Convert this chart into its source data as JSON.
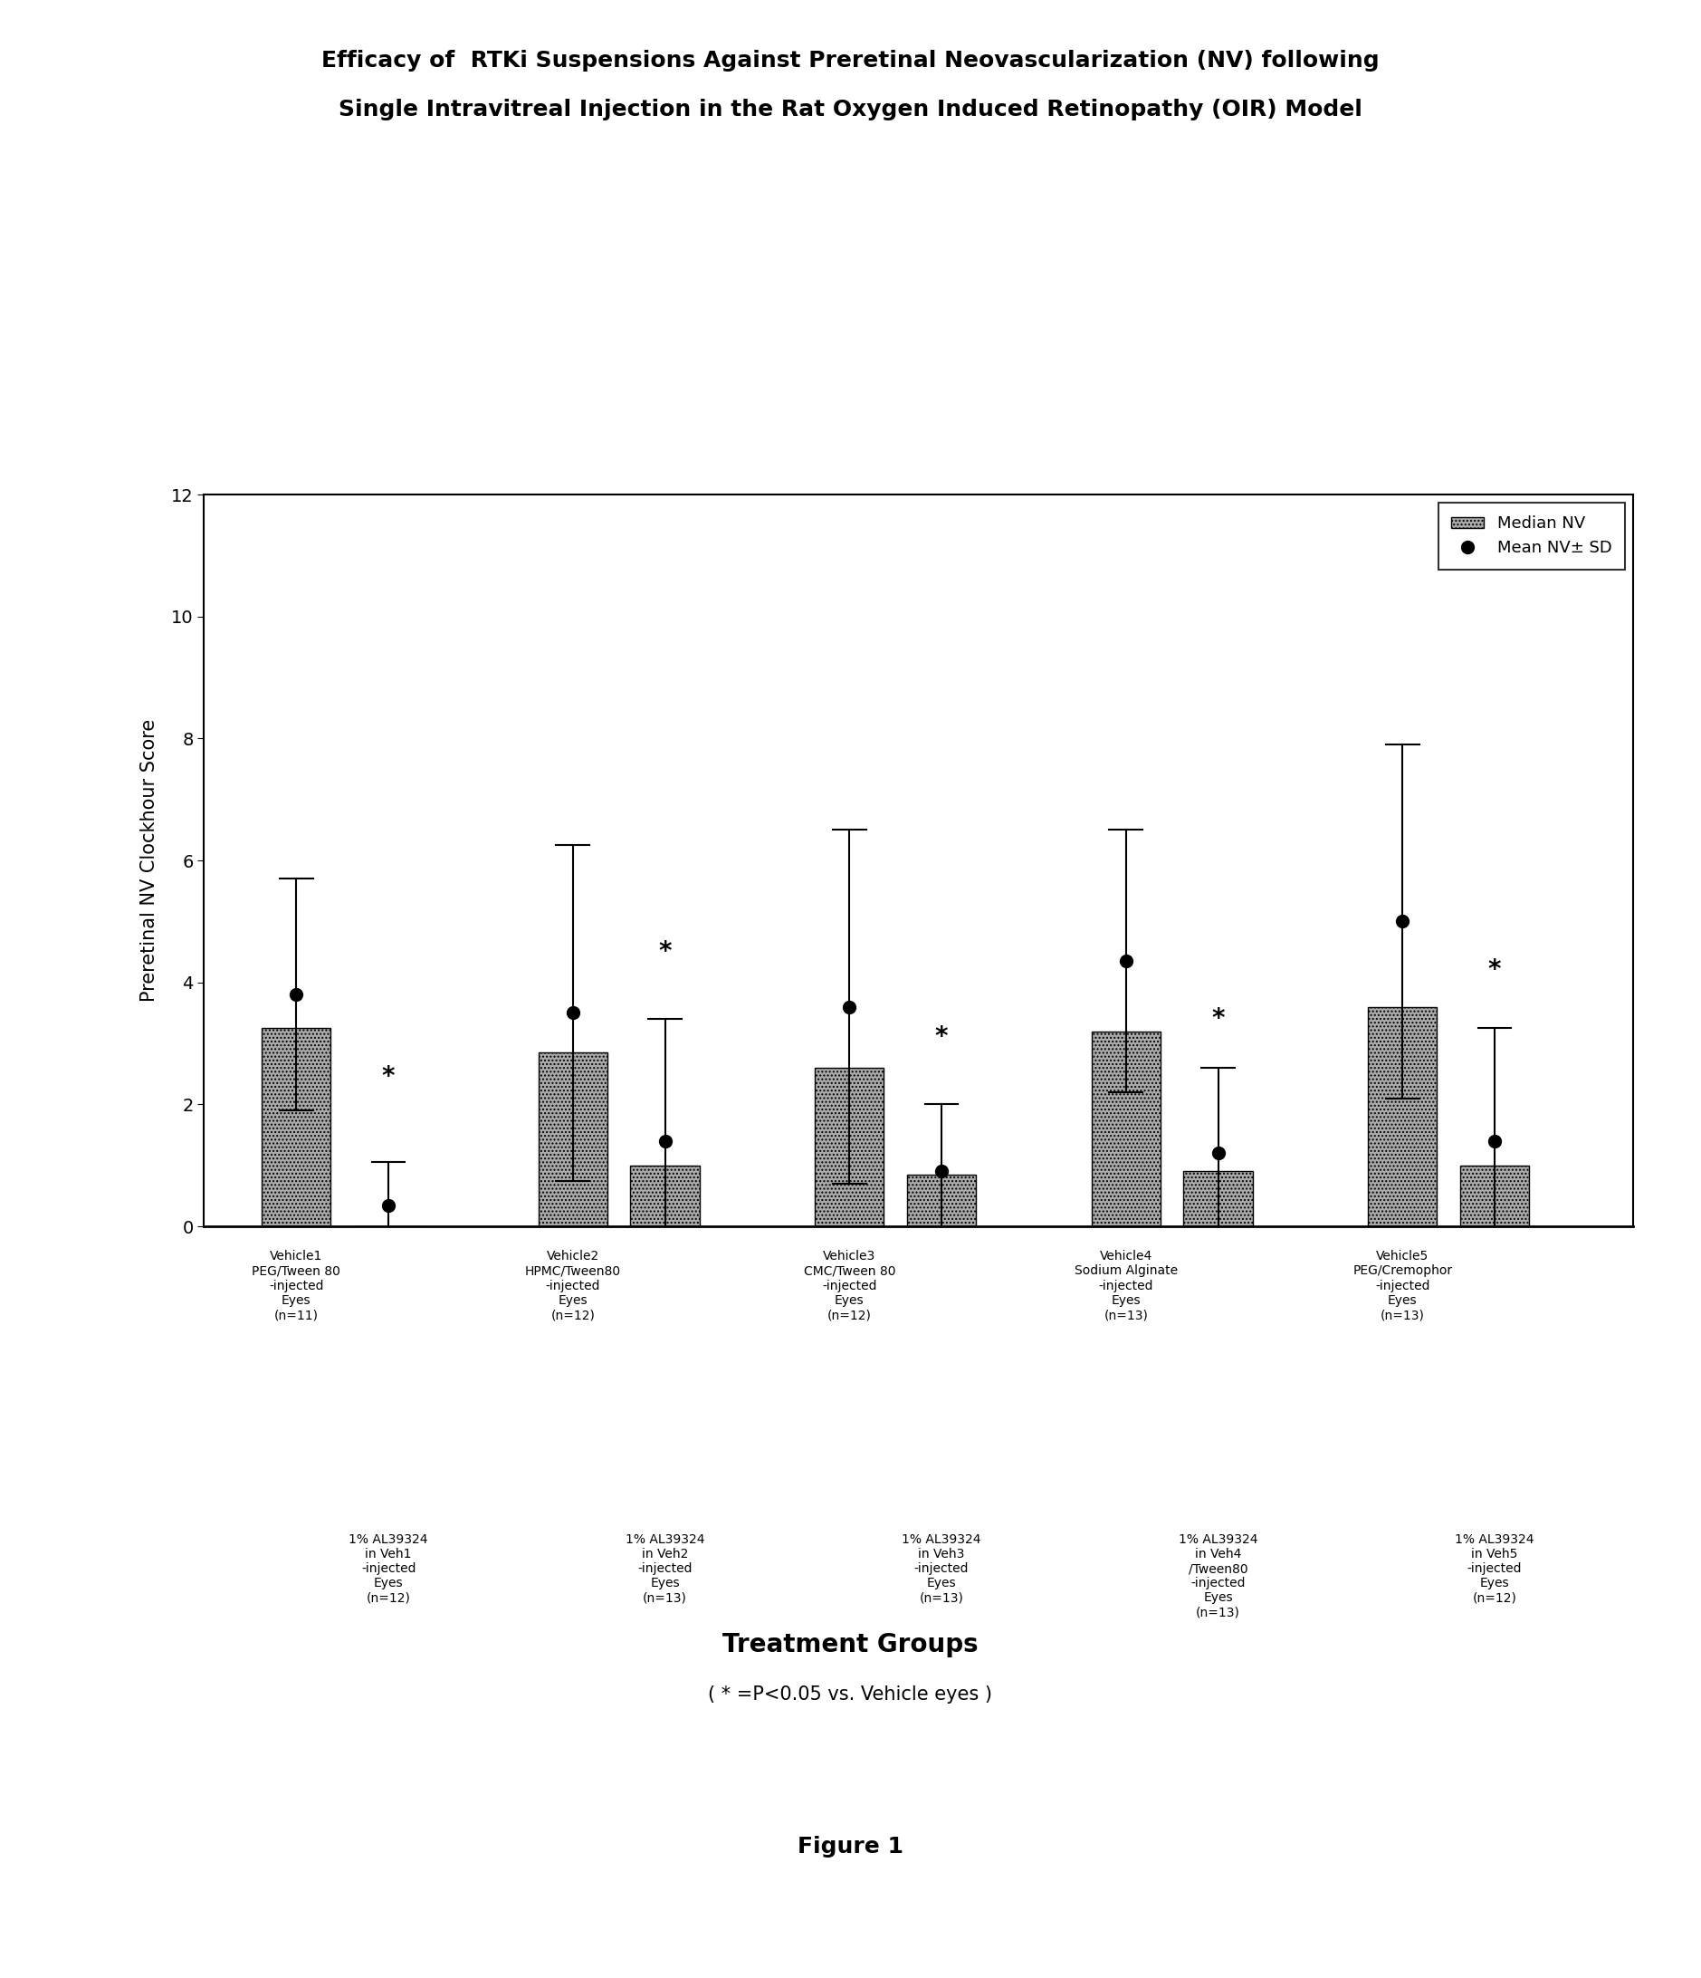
{
  "title_line1": "Efficacy of  RTKi Suspensions Against Preretinal Neovascularization (NV) following",
  "title_line2": "Single Intravitreal Injection in the Rat Oxygen Induced Retinopathy (OIR) Model",
  "ylabel": "Preretinal NV Clockhour Score",
  "xlabel_main": "Treatment Groups",
  "xlabel_sub": "( * =P<0.05 vs. Vehicle eyes )",
  "figure_label": "Figure 1",
  "ylim": [
    0,
    12
  ],
  "yticks": [
    0,
    2,
    4,
    6,
    8,
    10,
    12
  ],
  "bar_positions": [
    1,
    2,
    4,
    5,
    7,
    8,
    10,
    11,
    13,
    14
  ],
  "bar_heights_median": [
    3.25,
    0.0,
    2.85,
    1.0,
    2.6,
    0.85,
    3.2,
    0.9,
    3.6,
    1.0
  ],
  "bar_means": [
    3.8,
    0.35,
    3.5,
    1.4,
    3.6,
    0.9,
    4.35,
    1.2,
    5.0,
    1.4
  ],
  "bar_sd_upper": [
    5.7,
    1.05,
    6.25,
    3.4,
    6.5,
    2.0,
    6.5,
    2.6,
    7.9,
    3.25
  ],
  "bar_color": "#aaaaaa",
  "bar_hatch": "....",
  "bar_width": 0.75,
  "mean_marker": "o",
  "mean_color": "black",
  "mean_size": 10,
  "legend_items": [
    "Median NV",
    "Mean NV± SD"
  ],
  "vehicle_labels": [
    "Vehicle1\nPEG/Tween 80\n-injected\nEyes\n(n=11)",
    "Vehicle2\nHPMC/Tween80\n-injected\nEyes\n(n=12)",
    "Vehicle3\nCMC/Tween 80\n-injected\nEyes\n(n=12)",
    "Vehicle4\nSodium Alginate\n-injected\nEyes\n(n=13)",
    "Vehicle5\nPEG/Cremophor\n-injected\nEyes\n(n=13)"
  ],
  "treatment_labels": [
    "1% AL39324\nin Veh1\n-injected\nEyes\n(n=12)",
    "1% AL39324\nin Veh2\n-injected\nEyes\n(n=13)",
    "1% AL39324\nin Veh3\n-injected\nEyes\n(n=13)",
    "1% AL39324\nin Veh4\n/Tween80\n-injected\nEyes\n(n=13)",
    "1% AL39324\nin Veh5\n-injected\nEyes\n(n=12)"
  ],
  "vehicle_x_positions": [
    1,
    4,
    7,
    10,
    13
  ],
  "treatment_x_positions": [
    2,
    5,
    8,
    11,
    14
  ],
  "asterisk_positions_x": [
    2,
    5,
    8,
    11,
    14
  ],
  "asterisk_positions_y": [
    2.25,
    4.3,
    2.9,
    3.2,
    4.0
  ],
  "background_color": "#ffffff",
  "xlim": [
    0,
    15.5
  ]
}
